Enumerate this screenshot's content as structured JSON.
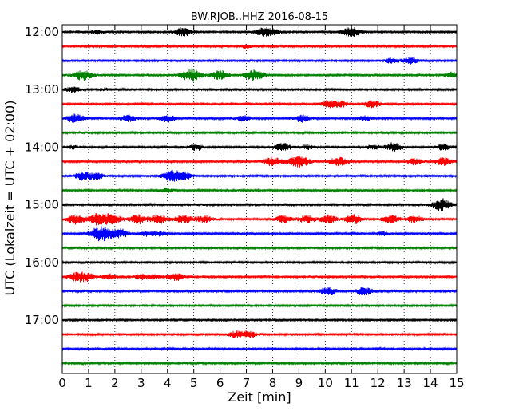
{
  "chart_data": {
    "type": "line",
    "title": "BW.RJOB..HHZ 2016-08-15",
    "xlabel": "Zeit  [min]",
    "ylabel": "UTC (Lokalzeit = UTC + 02:00)",
    "xlim": [
      0,
      15
    ],
    "x_ticks": [
      "0",
      "1",
      "2",
      "3",
      "4",
      "5",
      "6",
      "7",
      "8",
      "9",
      "10",
      "11",
      "12",
      "13",
      "14",
      "15"
    ],
    "y_ticks": [
      "12:00",
      "13:00",
      "14:00",
      "15:00",
      "16:00",
      "17:00"
    ],
    "grid": "vertical dotted at each minute",
    "trace_interval_min": 15,
    "series_colors": [
      "#000000",
      "#ff0000",
      "#0000ff",
      "#008000"
    ],
    "traces": [
      {
        "start": "12:00",
        "events": [
          [
            1.3,
            0.25
          ],
          [
            4.6,
            0.55
          ],
          [
            7.7,
            0.6
          ],
          [
            8.1,
            0.2
          ],
          [
            11.0,
            0.65
          ]
        ]
      },
      {
        "start": "12:15",
        "events": [
          [
            7.0,
            0.2
          ]
        ]
      },
      {
        "start": "12:30",
        "events": [
          [
            12.5,
            0.3
          ],
          [
            13.2,
            0.45
          ]
        ]
      },
      {
        "start": "12:45",
        "events": [
          [
            0.8,
            0.7
          ],
          [
            4.9,
            0.85
          ],
          [
            6.0,
            0.6
          ],
          [
            7.3,
            0.75
          ],
          [
            14.8,
            0.35
          ]
        ]
      },
      {
        "start": "13:00",
        "events": [
          [
            0.4,
            0.35
          ],
          [
            1.6,
            0.15
          ]
        ]
      },
      {
        "start": "13:15",
        "events": [
          [
            10.1,
            0.45
          ],
          [
            10.6,
            0.4
          ],
          [
            11.8,
            0.5
          ]
        ]
      },
      {
        "start": "13:30",
        "events": [
          [
            0.5,
            0.6
          ],
          [
            2.5,
            0.4
          ],
          [
            4.0,
            0.45
          ],
          [
            6.9,
            0.35
          ],
          [
            9.1,
            0.45
          ],
          [
            11.5,
            0.3
          ]
        ]
      },
      {
        "start": "13:45",
        "events": []
      },
      {
        "start": "14:00",
        "events": [
          [
            0.4,
            0.2
          ],
          [
            5.1,
            0.4
          ],
          [
            8.4,
            0.55
          ],
          [
            9.3,
            0.3
          ],
          [
            11.8,
            0.3
          ],
          [
            12.6,
            0.55
          ],
          [
            14.5,
            0.4
          ]
        ]
      },
      {
        "start": "14:15",
        "events": [
          [
            8.0,
            0.6
          ],
          [
            9.0,
            0.8
          ],
          [
            10.5,
            0.6
          ],
          [
            13.4,
            0.4
          ],
          [
            14.5,
            0.5
          ]
        ]
      },
      {
        "start": "14:30",
        "events": [
          [
            0.8,
            0.55
          ],
          [
            1.3,
            0.4
          ],
          [
            4.2,
            0.75
          ],
          [
            4.7,
            0.4
          ]
        ]
      },
      {
        "start": "14:45",
        "events": [
          [
            4.0,
            0.25
          ]
        ]
      },
      {
        "start": "15:00",
        "events": [
          [
            14.4,
            0.8
          ]
        ]
      },
      {
        "start": "15:15",
        "events": [
          [
            0.5,
            0.6
          ],
          [
            1.3,
            0.7
          ],
          [
            1.9,
            0.65
          ],
          [
            2.9,
            0.6
          ],
          [
            3.7,
            0.6
          ],
          [
            4.6,
            0.55
          ],
          [
            5.4,
            0.5
          ],
          [
            8.4,
            0.5
          ],
          [
            9.3,
            0.5
          ],
          [
            10.1,
            0.55
          ],
          [
            11.1,
            0.6
          ],
          [
            12.5,
            0.55
          ],
          [
            13.4,
            0.5
          ]
        ]
      },
      {
        "start": "15:30",
        "events": [
          [
            1.5,
            1.0
          ],
          [
            2.2,
            0.55
          ],
          [
            3.2,
            0.3
          ],
          [
            3.7,
            0.3
          ],
          [
            12.2,
            0.25
          ]
        ]
      },
      {
        "start": "15:45",
        "events": []
      },
      {
        "start": "16:00",
        "events": []
      },
      {
        "start": "16:15",
        "events": [
          [
            0.6,
            0.6
          ],
          [
            1.0,
            0.4
          ],
          [
            1.8,
            0.35
          ],
          [
            3.0,
            0.3
          ],
          [
            3.5,
            0.3
          ],
          [
            4.3,
            0.5
          ]
        ]
      },
      {
        "start": "16:30",
        "events": [
          [
            10.1,
            0.55
          ],
          [
            11.5,
            0.55
          ]
        ]
      },
      {
        "start": "16:45",
        "events": []
      },
      {
        "start": "17:00",
        "events": []
      },
      {
        "start": "17:15",
        "events": [
          [
            6.6,
            0.4
          ],
          [
            7.1,
            0.45
          ]
        ]
      },
      {
        "start": "17:30",
        "events": []
      },
      {
        "start": "17:45",
        "events": []
      }
    ]
  }
}
